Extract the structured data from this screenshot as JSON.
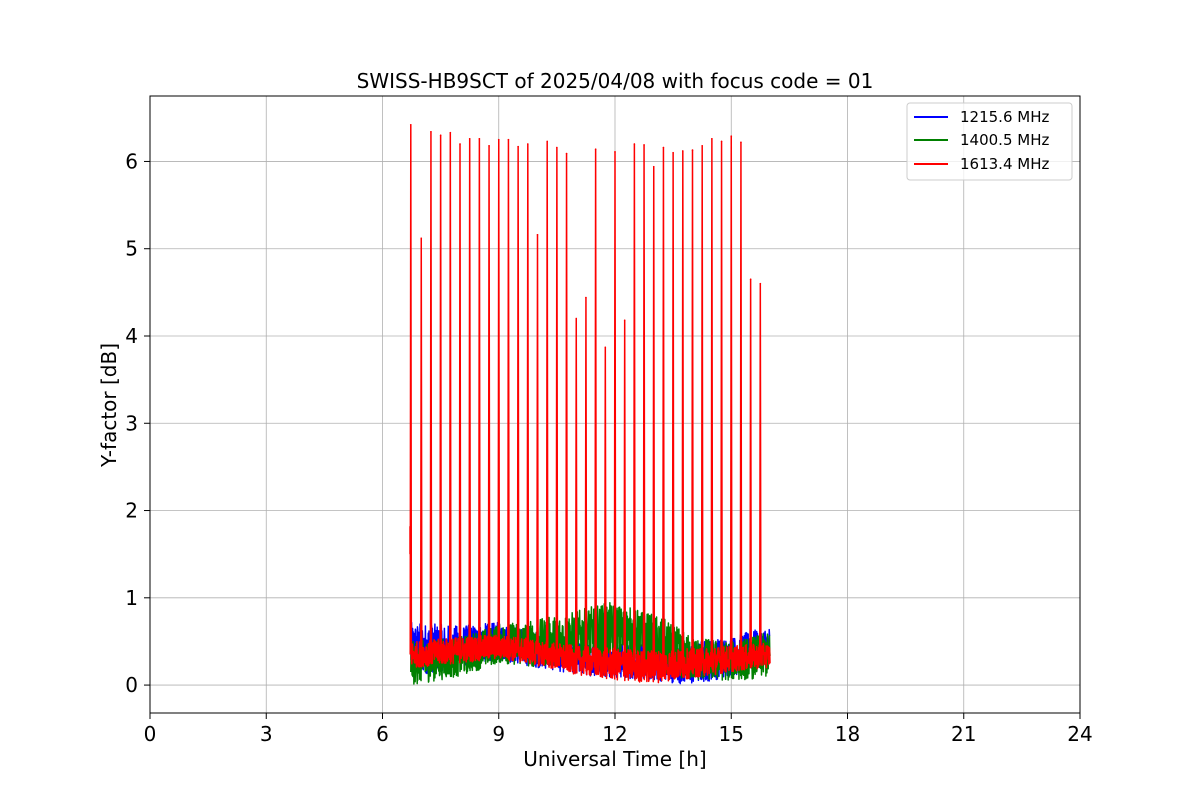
{
  "chart_data": {
    "type": "line",
    "title": "SWISS-HB9SCT of 2025/04/08 with focus code = 01",
    "xlabel": "Universal Time [h]",
    "ylabel": "Y-factor [dB]",
    "xlim": [
      0,
      24
    ],
    "ylim": [
      -0.32,
      6.75
    ],
    "x_ticks": [
      0,
      3,
      6,
      9,
      12,
      15,
      18,
      21,
      24
    ],
    "y_ticks": [
      0,
      1,
      2,
      3,
      4,
      5,
      6
    ],
    "grid": true,
    "legend_position": "top-right",
    "series": [
      {
        "name": "1215.6 MHz",
        "color": "#0000ff",
        "start": 6.73,
        "end": 16.0,
        "baseline_envelope": [
          {
            "x": 6.8,
            "low": 0.1,
            "high": 0.72
          },
          {
            "x": 8.0,
            "low": 0.2,
            "high": 0.68
          },
          {
            "x": 9.0,
            "low": 0.28,
            "high": 0.72
          },
          {
            "x": 10.0,
            "low": 0.2,
            "high": 0.6
          },
          {
            "x": 11.0,
            "low": 0.12,
            "high": 0.5
          },
          {
            "x": 12.0,
            "low": 0.08,
            "high": 0.48
          },
          {
            "x": 13.0,
            "low": 0.05,
            "high": 0.45
          },
          {
            "x": 14.0,
            "low": 0.0,
            "high": 0.5
          },
          {
            "x": 15.0,
            "low": 0.1,
            "high": 0.55
          },
          {
            "x": 15.95,
            "low": 0.2,
            "high": 0.68
          }
        ],
        "spikes": []
      },
      {
        "name": "1400.5 MHz",
        "color": "#008000",
        "start": 6.73,
        "end": 16.0,
        "baseline_envelope": [
          {
            "x": 6.8,
            "low": 0.0,
            "high": 0.5
          },
          {
            "x": 8.0,
            "low": 0.1,
            "high": 0.55
          },
          {
            "x": 9.0,
            "low": 0.25,
            "high": 0.7
          },
          {
            "x": 10.0,
            "low": 0.2,
            "high": 0.75
          },
          {
            "x": 11.0,
            "low": 0.25,
            "high": 0.85
          },
          {
            "x": 11.8,
            "low": 0.3,
            "high": 0.95
          },
          {
            "x": 12.5,
            "low": 0.25,
            "high": 0.88
          },
          {
            "x": 13.2,
            "low": 0.1,
            "high": 0.78
          },
          {
            "x": 14.0,
            "low": 0.05,
            "high": 0.55
          },
          {
            "x": 15.0,
            "low": 0.05,
            "high": 0.5
          },
          {
            "x": 15.95,
            "low": 0.08,
            "high": 0.6
          }
        ],
        "spikes": []
      },
      {
        "name": "1613.4 MHz",
        "color": "#ff0000",
        "start": 6.73,
        "end": 16.0,
        "baseline_envelope": [
          {
            "x": 6.8,
            "low": 0.2,
            "high": 0.5
          },
          {
            "x": 8.0,
            "low": 0.25,
            "high": 0.55
          },
          {
            "x": 9.0,
            "low": 0.3,
            "high": 0.58
          },
          {
            "x": 10.0,
            "low": 0.22,
            "high": 0.52
          },
          {
            "x": 11.0,
            "low": 0.12,
            "high": 0.45
          },
          {
            "x": 12.0,
            "low": 0.05,
            "high": 0.42
          },
          {
            "x": 13.0,
            "low": 0.02,
            "high": 0.4
          },
          {
            "x": 14.0,
            "low": 0.08,
            "high": 0.42
          },
          {
            "x": 15.0,
            "low": 0.15,
            "high": 0.45
          },
          {
            "x": 15.95,
            "low": 0.2,
            "high": 0.48
          }
        ],
        "spikes": [
          {
            "x": 6.73,
            "y": 6.42
          },
          {
            "x": 7.0,
            "y": 5.12
          },
          {
            "x": 7.25,
            "y": 6.34
          },
          {
            "x": 7.5,
            "y": 6.3
          },
          {
            "x": 7.75,
            "y": 6.33
          },
          {
            "x": 8.0,
            "y": 6.2
          },
          {
            "x": 8.25,
            "y": 6.26
          },
          {
            "x": 8.5,
            "y": 6.26
          },
          {
            "x": 8.75,
            "y": 6.18
          },
          {
            "x": 9.0,
            "y": 6.25
          },
          {
            "x": 9.25,
            "y": 6.25
          },
          {
            "x": 9.5,
            "y": 6.17
          },
          {
            "x": 9.75,
            "y": 6.2
          },
          {
            "x": 10.0,
            "y": 5.16
          },
          {
            "x": 10.25,
            "y": 6.23
          },
          {
            "x": 10.5,
            "y": 6.16
          },
          {
            "x": 10.75,
            "y": 6.09
          },
          {
            "x": 11.0,
            "y": 4.2
          },
          {
            "x": 11.25,
            "y": 4.44
          },
          {
            "x": 11.5,
            "y": 6.14
          },
          {
            "x": 11.75,
            "y": 3.87
          },
          {
            "x": 12.0,
            "y": 6.11
          },
          {
            "x": 12.25,
            "y": 4.18
          },
          {
            "x": 12.5,
            "y": 6.2
          },
          {
            "x": 12.75,
            "y": 6.19
          },
          {
            "x": 13.0,
            "y": 5.94
          },
          {
            "x": 13.25,
            "y": 6.16
          },
          {
            "x": 13.5,
            "y": 6.1
          },
          {
            "x": 13.75,
            "y": 6.12
          },
          {
            "x": 14.0,
            "y": 6.13
          },
          {
            "x": 14.25,
            "y": 6.18
          },
          {
            "x": 14.5,
            "y": 6.26
          },
          {
            "x": 14.75,
            "y": 6.23
          },
          {
            "x": 15.0,
            "y": 6.29
          },
          {
            "x": 15.25,
            "y": 6.22
          },
          {
            "x": 15.5,
            "y": 4.65
          },
          {
            "x": 15.75,
            "y": 4.6
          }
        ]
      }
    ],
    "extra_marks": [
      {
        "series": "1613.4 MHz",
        "x": 6.71,
        "y_from": 1.5,
        "y_to": 1.82
      }
    ]
  }
}
